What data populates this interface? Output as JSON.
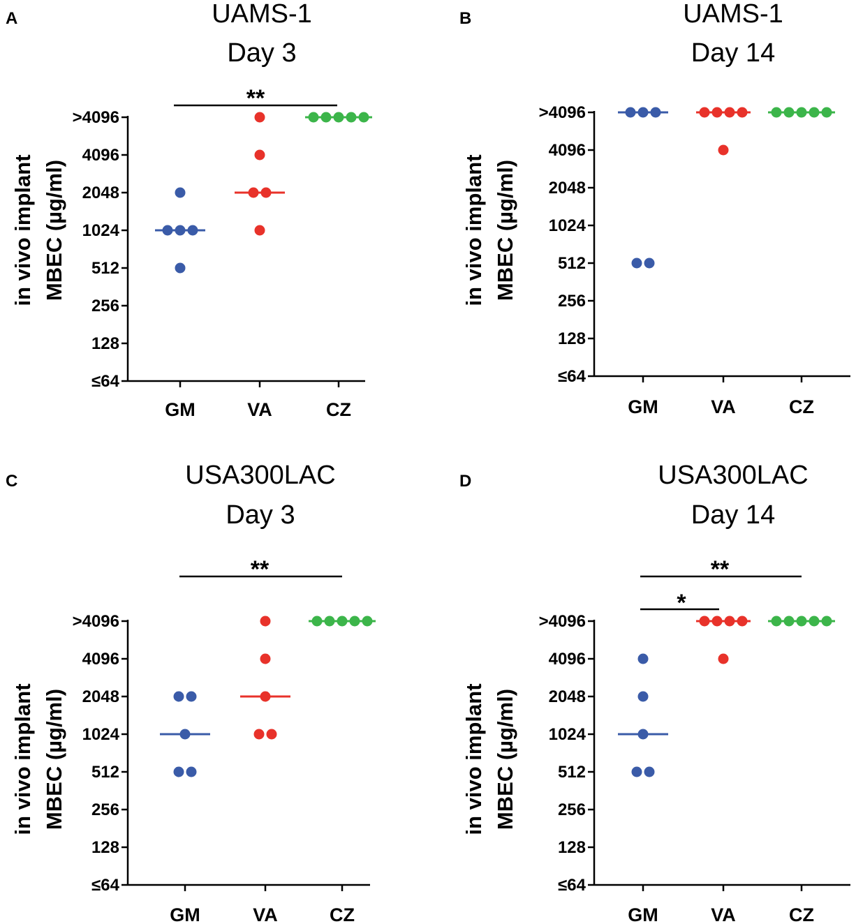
{
  "chart_data": [
    {
      "type": "scatter",
      "panel": "A",
      "title": [
        "UAMS-1",
        "Day 3"
      ],
      "ylabel": [
        "in vivo implant",
        "MBEC (µg/ml)"
      ],
      "yscale": "log2",
      "yticks": [
        "≤64",
        "128",
        "256",
        "512",
        "1024",
        "2048",
        "4096",
        ">4096"
      ],
      "categories": [
        "GM",
        "VA",
        "CZ"
      ],
      "colors": [
        "#3a5ba8",
        "#e8322a",
        "#3cb54a"
      ],
      "points": [
        [
          "512",
          "1024",
          "1024",
          "1024",
          "2048"
        ],
        [
          "1024",
          "2048",
          "2048",
          "4096",
          ">4096"
        ],
        [
          ">4096",
          ">4096",
          ">4096",
          ">4096",
          ">4096"
        ]
      ],
      "medians": [
        "1024",
        "2048",
        ">4096"
      ],
      "significance": [
        {
          "from": "GM",
          "to": "CZ",
          "label": "**"
        }
      ]
    },
    {
      "type": "scatter",
      "panel": "B",
      "title": [
        "UAMS-1",
        "Day 14"
      ],
      "ylabel": [
        "in vivo implant",
        "MBEC (µg/ml)"
      ],
      "yscale": "log2",
      "yticks": [
        "≤64",
        "128",
        "256",
        "512",
        "1024",
        "2048",
        "4096",
        ">4096"
      ],
      "categories": [
        "GM",
        "VA",
        "CZ"
      ],
      "colors": [
        "#3a5ba8",
        "#e8322a",
        "#3cb54a"
      ],
      "points": [
        [
          "512",
          "512",
          ">4096",
          ">4096",
          ">4096"
        ],
        [
          "4096",
          ">4096",
          ">4096",
          ">4096",
          ">4096"
        ],
        [
          ">4096",
          ">4096",
          ">4096",
          ">4096",
          ">4096"
        ]
      ],
      "medians": [
        ">4096",
        ">4096",
        ">4096"
      ],
      "significance": []
    },
    {
      "type": "scatter",
      "panel": "C",
      "title": [
        "USA300LAC",
        "Day 3"
      ],
      "ylabel": [
        "in vivo implant",
        "MBEC (µg/ml)"
      ],
      "yscale": "log2",
      "yticks": [
        "≤64",
        "128",
        "256",
        "512",
        "1024",
        "2048",
        "4096",
        ">4096"
      ],
      "categories": [
        "GM",
        "VA",
        "CZ"
      ],
      "colors": [
        "#3a5ba8",
        "#e8322a",
        "#3cb54a"
      ],
      "points": [
        [
          "512",
          "512",
          "1024",
          "2048",
          "2048"
        ],
        [
          "1024",
          "1024",
          "2048",
          "4096",
          ">4096"
        ],
        [
          ">4096",
          ">4096",
          ">4096",
          ">4096",
          ">4096"
        ]
      ],
      "medians": [
        "1024",
        "2048",
        ">4096"
      ],
      "significance": [
        {
          "from": "GM",
          "to": "CZ",
          "label": "**"
        }
      ]
    },
    {
      "type": "scatter",
      "panel": "D",
      "title": [
        "USA300LAC",
        "Day 14"
      ],
      "ylabel": [
        "in vivo implant",
        "MBEC (µg/ml)"
      ],
      "yscale": "log2",
      "yticks": [
        "≤64",
        "128",
        "256",
        "512",
        "1024",
        "2048",
        "4096",
        ">4096"
      ],
      "categories": [
        "GM",
        "VA",
        "CZ"
      ],
      "colors": [
        "#3a5ba8",
        "#e8322a",
        "#3cb54a"
      ],
      "points": [
        [
          "512",
          "512",
          "1024",
          "2048",
          "4096"
        ],
        [
          "4096",
          ">4096",
          ">4096",
          ">4096",
          ">4096"
        ],
        [
          ">4096",
          ">4096",
          ">4096",
          ">4096",
          ">4096"
        ]
      ],
      "medians": [
        "1024",
        ">4096",
        ">4096"
      ],
      "significance": [
        {
          "from": "GM",
          "to": "CZ",
          "label": "**"
        },
        {
          "from": "GM",
          "to": "VA",
          "label": "*"
        }
      ]
    }
  ]
}
